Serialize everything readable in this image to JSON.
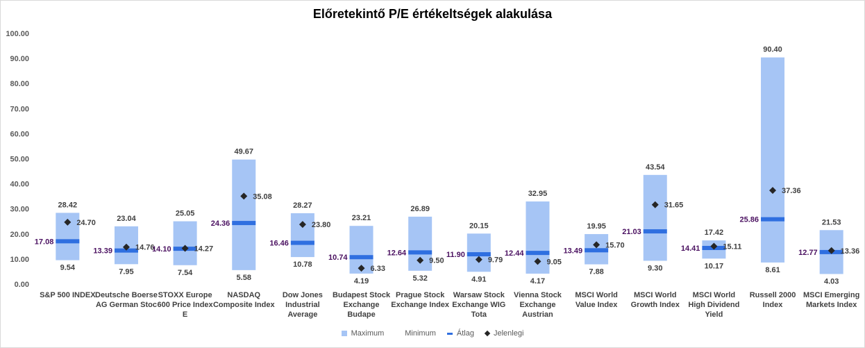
{
  "chart_data": {
    "type": "bar",
    "title": "Előretekintő P/E értékeltségek alakulása",
    "ylim": [
      0,
      100
    ],
    "yticks": [
      "0.00",
      "10.00",
      "20.00",
      "30.00",
      "40.00",
      "50.00",
      "60.00",
      "70.00",
      "80.00",
      "90.00",
      "100.00"
    ],
    "categories": [
      [
        "S&P 500 INDEX"
      ],
      [
        "Deutsche Boerse",
        "AG German Stoc"
      ],
      [
        "STOXX Europe",
        "600 Price Index",
        "E"
      ],
      [
        "NASDAQ",
        "Composite Index"
      ],
      [
        "Dow Jones",
        "Industrial",
        "Average"
      ],
      [
        "Budapest Stock",
        "Exchange",
        "Budape"
      ],
      [
        "Prague Stock",
        "Exchange Index"
      ],
      [
        "Warsaw Stock",
        "Exchange WIG",
        "Tota"
      ],
      [
        "Vienna Stock",
        "Exchange",
        "Austrian"
      ],
      [
        "MSCI World",
        "Value Index"
      ],
      [
        "MSCI World",
        "Growth Index"
      ],
      [
        "MSCI World",
        "High Dividend",
        "Yield"
      ],
      [
        "Russell 2000",
        "Index"
      ],
      [
        "MSCI Emerging",
        "Markets Index"
      ]
    ],
    "series": [
      {
        "name": "Maximum",
        "values": [
          28.42,
          23.04,
          25.05,
          49.67,
          28.27,
          23.21,
          26.89,
          20.15,
          32.95,
          19.95,
          43.54,
          17.42,
          90.4,
          21.53
        ],
        "labels": [
          "28.42",
          "23.04",
          "25.05",
          "49.67",
          "28.27",
          "23.21",
          "26.89",
          "20.15",
          "32.95",
          "19.95",
          "43.54",
          "17.42",
          "90.40",
          "21.53"
        ]
      },
      {
        "name": "Minimum",
        "values": [
          9.54,
          7.95,
          7.54,
          5.58,
          10.78,
          4.19,
          5.32,
          4.91,
          4.17,
          7.88,
          9.3,
          10.17,
          8.61,
          4.03
        ],
        "labels": [
          "9.54",
          "7.95",
          "7.54",
          "5.58",
          "10.78",
          "4.19",
          "5.32",
          "4.91",
          "4.17",
          "7.88",
          "9.30",
          "10.17",
          "8.61",
          "4.03"
        ]
      },
      {
        "name": "Átlag",
        "values": [
          17.08,
          13.39,
          14.1,
          24.36,
          16.46,
          10.74,
          12.64,
          11.9,
          12.44,
          13.49,
          21.03,
          14.41,
          25.86,
          12.77
        ],
        "labels": [
          "17.08",
          "13.39",
          "14.10",
          "24.36",
          "16.46",
          "10.74",
          "12.64",
          "11.90",
          "12.44",
          "13.49",
          "21.03",
          "14.41",
          "25.86",
          "12.77"
        ]
      },
      {
        "name": "Jelenlegi",
        "values": [
          24.7,
          14.76,
          14.27,
          35.08,
          23.8,
          6.33,
          9.5,
          9.79,
          9.05,
          15.7,
          31.65,
          15.11,
          37.36,
          13.36
        ],
        "labels": [
          "24.70",
          "14.76",
          "14.27",
          "35.08",
          "23.80",
          "6.33",
          "9.50",
          "9.79",
          "9.05",
          "15.70",
          "31.65",
          "15.11",
          "37.36",
          "13.36"
        ]
      }
    ],
    "colors": {
      "range": "#a6c5f5",
      "average": "#2f6fe0",
      "current": "#262626",
      "average_label": "#4a1060"
    },
    "legend_position": "bottom",
    "grid": false
  },
  "legend": {
    "max_label": "Maximum",
    "min_label": "Minimum",
    "avg_label": "Átlag",
    "cur_label": "Jelenlegi"
  }
}
